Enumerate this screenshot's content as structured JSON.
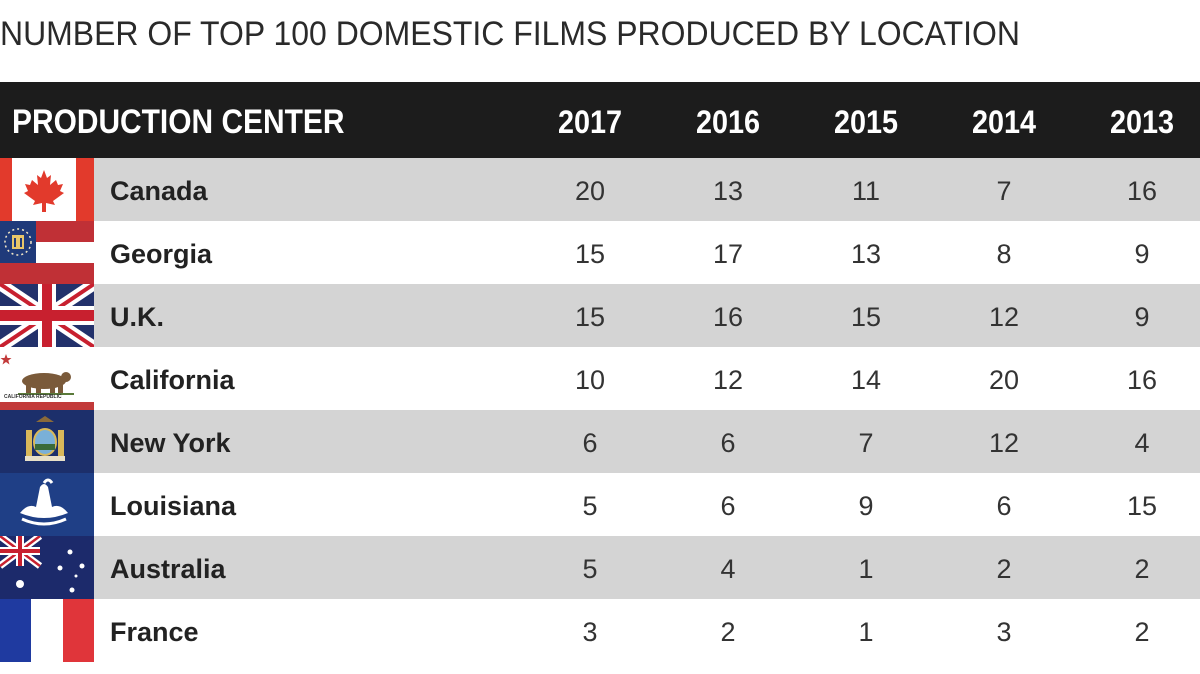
{
  "title": "NUMBER OF TOP 100 DOMESTIC FILMS PRODUCED BY LOCATION",
  "chart_data": {
    "type": "table",
    "title": "NUMBER OF TOP 100 DOMESTIC FILMS PRODUCED BY LOCATION",
    "columns": [
      "PRODUCTION CENTER",
      "2017",
      "2016",
      "2015",
      "2014",
      "2013"
    ],
    "rows": [
      {
        "name": "Canada",
        "flag": "canada-flag-icon",
        "values": [
          "20",
          "13",
          "11",
          "7",
          "16"
        ]
      },
      {
        "name": "Georgia",
        "flag": "georgia-flag-icon",
        "values": [
          "15",
          "17",
          "13",
          "8",
          "9"
        ]
      },
      {
        "name": "U.K.",
        "flag": "uk-flag-icon",
        "values": [
          "15",
          "16",
          "15",
          "12",
          "9"
        ]
      },
      {
        "name": "California",
        "flag": "california-flag-icon",
        "flag_text": "CALIFORNIA REPUBLIC",
        "values": [
          "10",
          "12",
          "14",
          "20",
          "16"
        ]
      },
      {
        "name": "New York",
        "flag": "new-york-flag-icon",
        "values": [
          "6",
          "6",
          "7",
          "12",
          "4"
        ]
      },
      {
        "name": "Louisiana",
        "flag": "louisiana-flag-icon",
        "values": [
          "5",
          "6",
          "9",
          "6",
          "15"
        ]
      },
      {
        "name": "Australia",
        "flag": "australia-flag-icon",
        "values": [
          "5",
          "4",
          "1",
          "2",
          "2"
        ]
      },
      {
        "name": "France",
        "flag": "france-flag-icon",
        "values": [
          "3",
          "2",
          "1",
          "3",
          "2"
        ]
      }
    ]
  },
  "colors": {
    "header_bg": "#1c1c1c",
    "row_gray": "#d4d4d4",
    "row_white": "#ffffff"
  }
}
